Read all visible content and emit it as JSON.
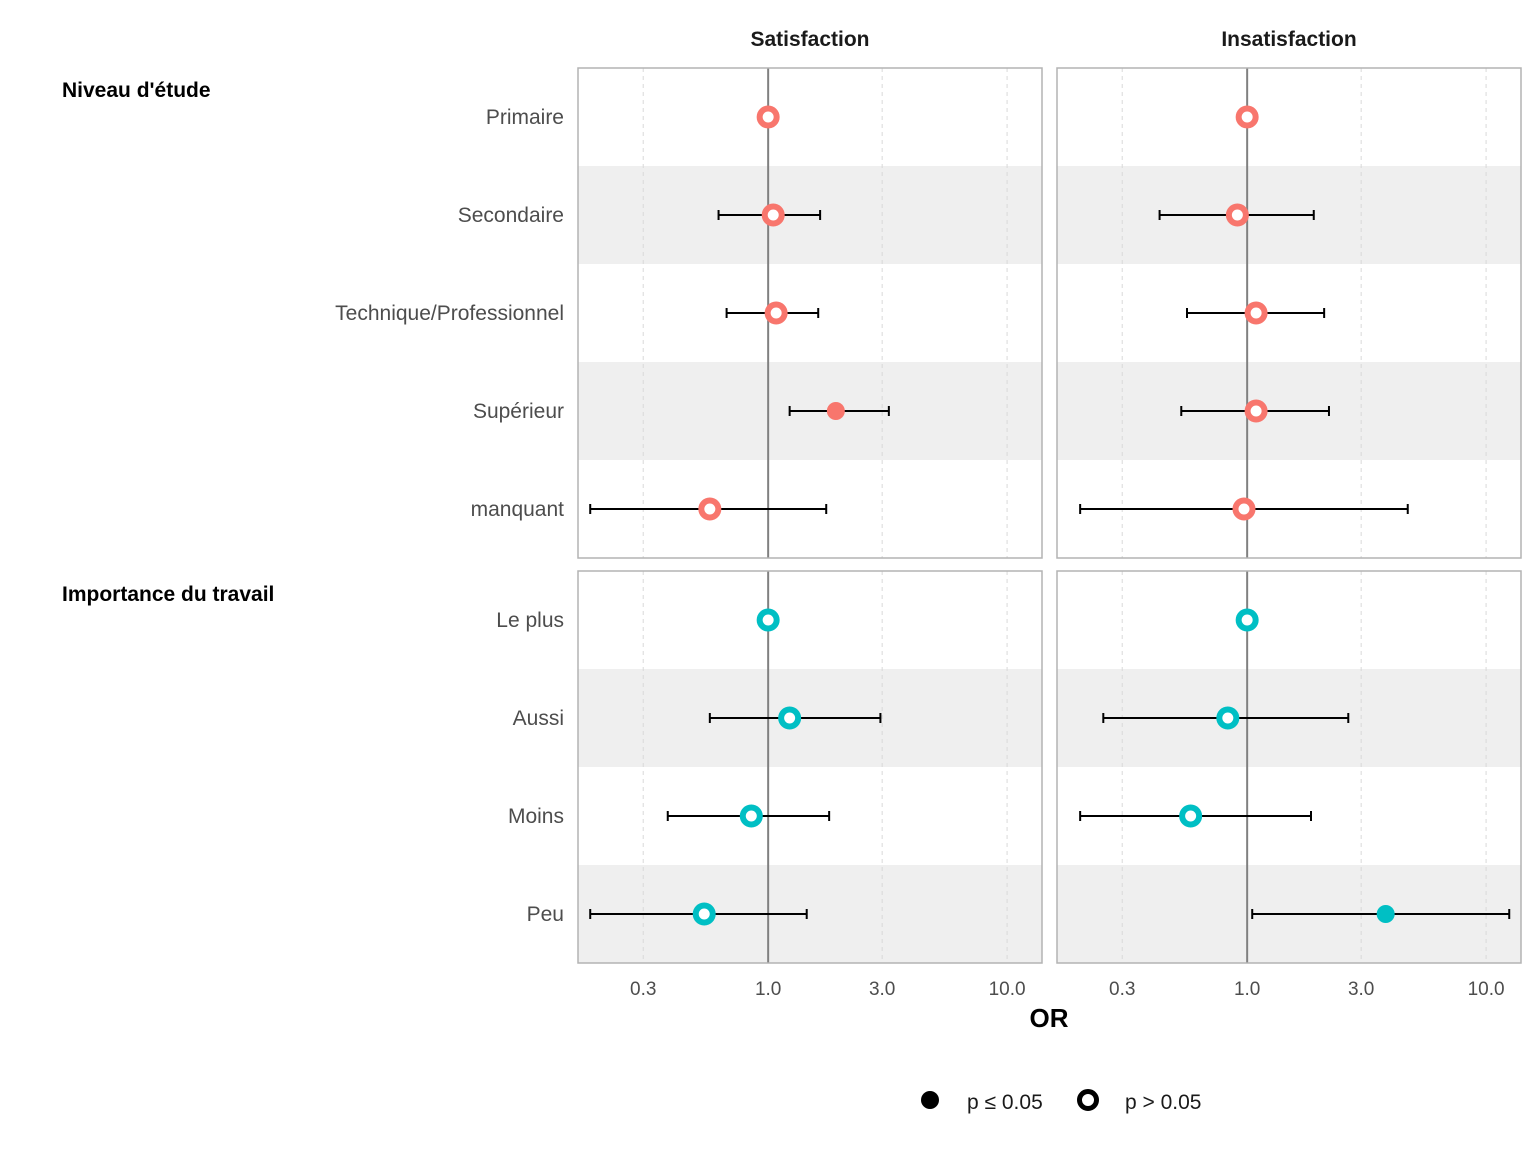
{
  "chart_data": {
    "type": "forest",
    "xlabel": "OR",
    "x_scale": "log",
    "xlim": [
      0.16,
      14
    ],
    "x_ticks": [
      0.3,
      1.0,
      3.0,
      10.0
    ],
    "x_tick_labels": [
      "0.3",
      "1.0",
      "3.0",
      "10.0"
    ],
    "reference_line": 1.0,
    "facets": [
      "Satisfaction",
      "Insatisfaction"
    ],
    "colors": {
      "Niveau d'étude": "#F8766D",
      "Importance du travail": "#00BFC4"
    },
    "groups": [
      {
        "name": "Niveau d'étude",
        "rows": [
          {
            "label": "Primaire",
            "values": [
              {
                "or": 1.0,
                "lo": null,
                "hi": null,
                "significant": false
              },
              {
                "or": 1.0,
                "lo": null,
                "hi": null,
                "significant": false
              }
            ]
          },
          {
            "label": "Secondaire",
            "values": [
              {
                "or": 1.05,
                "lo": 0.62,
                "hi": 1.65,
                "significant": false
              },
              {
                "or": 0.91,
                "lo": 0.43,
                "hi": 1.9,
                "significant": false
              }
            ]
          },
          {
            "label": "Technique/Professionnel",
            "values": [
              {
                "or": 1.08,
                "lo": 0.67,
                "hi": 1.62,
                "significant": false
              },
              {
                "or": 1.09,
                "lo": 0.56,
                "hi": 2.1,
                "significant": false
              }
            ]
          },
          {
            "label": "Supérieur",
            "values": [
              {
                "or": 1.92,
                "lo": 1.23,
                "hi": 3.2,
                "significant": true
              },
              {
                "or": 1.09,
                "lo": 0.53,
                "hi": 2.2,
                "significant": false
              }
            ]
          },
          {
            "label": "manquant",
            "values": [
              {
                "or": 0.57,
                "lo": 0.18,
                "hi": 1.75,
                "significant": false
              },
              {
                "or": 0.97,
                "lo": 0.2,
                "hi": 4.7,
                "significant": false
              }
            ]
          }
        ]
      },
      {
        "name": "Importance du travail",
        "rows": [
          {
            "label": "Le plus",
            "values": [
              {
                "or": 1.0,
                "lo": null,
                "hi": null,
                "significant": false
              },
              {
                "or": 1.0,
                "lo": null,
                "hi": null,
                "significant": false
              }
            ]
          },
          {
            "label": "Aussi",
            "values": [
              {
                "or": 1.23,
                "lo": 0.57,
                "hi": 2.95,
                "significant": false
              },
              {
                "or": 0.83,
                "lo": 0.25,
                "hi": 2.65,
                "significant": false
              }
            ]
          },
          {
            "label": "Moins",
            "values": [
              {
                "or": 0.85,
                "lo": 0.38,
                "hi": 1.8,
                "significant": false
              },
              {
                "or": 0.58,
                "lo": 0.2,
                "hi": 1.85,
                "significant": false
              }
            ]
          },
          {
            "label": "Peu",
            "values": [
              {
                "or": 0.54,
                "lo": 0.18,
                "hi": 1.45,
                "significant": false
              },
              {
                "or": 3.8,
                "lo": 1.05,
                "hi": 12.5,
                "significant": true
              }
            ]
          }
        ]
      }
    ],
    "legend": {
      "position": "bottom",
      "items": [
        {
          "label": "p ≤ 0.05",
          "significant": true
        },
        {
          "label": "p > 0.05",
          "significant": false
        }
      ]
    }
  }
}
